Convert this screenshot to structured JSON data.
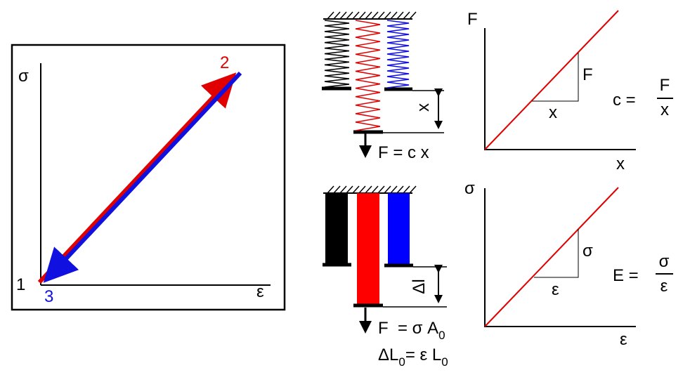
{
  "stress_strain_plot": {
    "y_label": "σ",
    "x_label": "ε",
    "points": [
      "1",
      "2",
      "3"
    ]
  },
  "spring_model": {
    "displacement": "x",
    "force_equation": "F = c x"
  },
  "bar_model": {
    "displacement": "Δl",
    "force_equation": "F  = σ A",
    "force_sub": "0",
    "elong_prefix": "ΔL",
    "elong_sub1": "0",
    "elong_mid": "= ε L",
    "elong_sub2": "0"
  },
  "force_plot": {
    "y_label": "F",
    "x_label": "x",
    "rise": "F",
    "run": "x",
    "lhs": "c =",
    "numerator": "F",
    "denominator": "x"
  },
  "modulus_plot": {
    "y_label": "σ",
    "x_label": "ε",
    "rise": "σ",
    "run": "ε",
    "lhs": "E =",
    "numerator": "σ",
    "denominator": "ε"
  }
}
